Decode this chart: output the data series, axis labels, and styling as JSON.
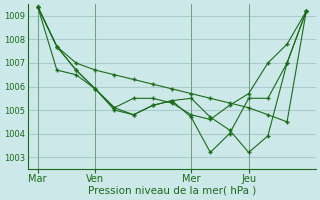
{
  "background_color": "#cce8e8",
  "grid_color": "#aacccc",
  "line_color": "#1a6b1a",
  "marker_color": "#1a6b1a",
  "xlabel": "Pression niveau de la mer( hPa )",
  "ylim": [
    1002.5,
    1009.5
  ],
  "yticks": [
    1003,
    1004,
    1005,
    1006,
    1007,
    1008,
    1009
  ],
  "x_tick_labels": [
    "Mar",
    "Ven",
    "Mer",
    "Jeu"
  ],
  "x_tick_positions": [
    0,
    3,
    8,
    11
  ],
  "xlim": [
    -0.5,
    14.5
  ],
  "series": [
    {
      "x": [
        0,
        1,
        2,
        3,
        4,
        5,
        6,
        7,
        8,
        9,
        10,
        11,
        12,
        13,
        14
      ],
      "y": [
        1009.4,
        1007.7,
        1007.0,
        1006.7,
        1006.5,
        1006.3,
        1006.1,
        1005.9,
        1005.7,
        1005.5,
        1005.3,
        1005.1,
        1004.8,
        1004.5,
        1009.2
      ]
    },
    {
      "x": [
        0,
        1,
        2,
        3,
        4,
        5,
        6,
        7,
        8,
        9,
        10,
        11,
        12,
        13,
        14
      ],
      "y": [
        1009.4,
        1007.7,
        1006.7,
        1005.9,
        1005.1,
        1005.5,
        1005.5,
        1005.3,
        1004.8,
        1004.6,
        1005.2,
        1005.7,
        1007.0,
        1007.8,
        1009.2
      ]
    },
    {
      "x": [
        0,
        1,
        2,
        3,
        4,
        5,
        6,
        7,
        8,
        9,
        10,
        11,
        12,
        13,
        14
      ],
      "y": [
        1009.4,
        1007.7,
        1006.7,
        1005.9,
        1005.0,
        1004.8,
        1005.2,
        1005.4,
        1005.5,
        1004.7,
        1004.15,
        1003.2,
        1003.9,
        1007.0,
        1009.2
      ]
    },
    {
      "x": [
        0,
        1,
        2,
        3,
        4,
        5,
        6,
        7,
        8,
        9,
        10,
        11,
        12,
        13,
        14
      ],
      "y": [
        1009.4,
        1006.7,
        1006.5,
        1005.9,
        1005.1,
        1004.8,
        1005.2,
        1005.4,
        1004.7,
        1003.2,
        1004.0,
        1005.5,
        1005.5,
        1007.0,
        1009.2
      ]
    }
  ]
}
